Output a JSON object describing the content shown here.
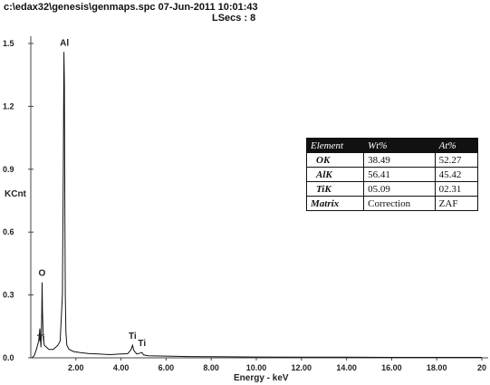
{
  "header": {
    "path_line": "c:\\edax32\\genesis\\genmaps.spc  07-Jun-2011 10:01:43",
    "lsecs_line": "LSecs : 8"
  },
  "chart_data": {
    "type": "line",
    "title": "",
    "xlabel": "Energy - keV",
    "ylabel": "KCnt",
    "xlim": [
      0,
      20
    ],
    "ylim": [
      0,
      1.5
    ],
    "x_ticks": [
      2,
      4,
      6,
      8,
      10,
      12,
      14,
      16,
      18,
      20
    ],
    "x_tick_labels": [
      "2.00",
      "4.00",
      "6.00",
      "8.00",
      "10.00",
      "12.00",
      "14.00",
      "16.00",
      "18.00",
      "20"
    ],
    "y_ticks": [
      0,
      0.3,
      0.6,
      0.9,
      1.2,
      1.5
    ],
    "y_tick_labels": [
      "0.0",
      "0.3",
      "0.6",
      "0.9",
      "1.2",
      "1.5"
    ],
    "grid": false,
    "color": "#111111",
    "series": [
      {
        "x": [
          0.05,
          0.15,
          0.25,
          0.35,
          0.4,
          0.45,
          0.48,
          0.5,
          0.52,
          0.55,
          0.6,
          0.7,
          0.8,
          0.9,
          1.0,
          1.1,
          1.2,
          1.3,
          1.4,
          1.44,
          1.47,
          1.49,
          1.51,
          1.53,
          1.56,
          1.6,
          1.7,
          1.9,
          2.2,
          2.6,
          3.0,
          3.5,
          4.0,
          4.3,
          4.45,
          4.51,
          4.57,
          4.7,
          4.93,
          5.0,
          5.2,
          6.0,
          7.0,
          8.0,
          10.0,
          12.0,
          14.0,
          16.0,
          18.0,
          20.0
        ],
        "y": [
          0.0,
          0.01,
          0.04,
          0.08,
          0.14,
          0.05,
          0.18,
          0.36,
          0.22,
          0.1,
          0.06,
          0.05,
          0.04,
          0.04,
          0.04,
          0.05,
          0.06,
          0.08,
          0.3,
          0.9,
          1.46,
          1.3,
          0.7,
          0.3,
          0.12,
          0.06,
          0.04,
          0.03,
          0.025,
          0.02,
          0.018,
          0.015,
          0.018,
          0.02,
          0.04,
          0.06,
          0.035,
          0.018,
          0.025,
          0.014,
          0.01,
          0.008,
          0.006,
          0.005,
          0.004,
          0.003,
          0.003,
          0.002,
          0.002,
          0.002
        ]
      }
    ],
    "peak_labels": [
      {
        "text": "Al",
        "x": 1.49,
        "y": 1.46
      },
      {
        "text": "O",
        "x": 0.5,
        "y": 0.36
      },
      {
        "text": "Ti",
        "x": 0.45,
        "y": 0.05
      },
      {
        "text": "Ti",
        "x": 4.51,
        "y": 0.06
      },
      {
        "text": "Ti",
        "x": 4.93,
        "y": 0.025
      }
    ],
    "table": {
      "headers": [
        "Element",
        "Wt%",
        "At%"
      ],
      "rows": [
        [
          "OK",
          "38.49",
          "52.27"
        ],
        [
          "AlK",
          "56.41",
          "45.42"
        ],
        [
          "TiK",
          "05.09",
          "02.31"
        ],
        [
          "Matrix",
          "Correction",
          "ZAF"
        ]
      ]
    }
  }
}
